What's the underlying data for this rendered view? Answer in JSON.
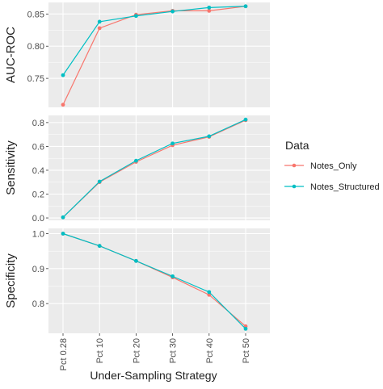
{
  "chart_data": {
    "type": "line",
    "xlabel": "Under-Sampling Strategy",
    "categories": [
      "Pct 0.28",
      "Pct 10",
      "Pct 20",
      "Pct 30",
      "Pct 40",
      "Pct 50"
    ],
    "legend": {
      "title": "Data",
      "position": "right",
      "entries": [
        {
          "name": "Notes_Only",
          "color": "#F8766D"
        },
        {
          "name": "Notes_Structured",
          "color": "#00BFC4"
        }
      ]
    },
    "panels": [
      {
        "ylabel": "AUC-ROC",
        "ylim": [
          0.705,
          0.868
        ],
        "yticks": [
          0.75,
          0.8,
          0.85
        ],
        "ytick_labels": [
          "0.75",
          "0.80",
          "0.85"
        ],
        "series": [
          {
            "name": "Notes_Only",
            "values": [
              0.709,
              0.828,
              0.849,
              0.855,
              0.855,
              0.862
            ]
          },
          {
            "name": "Notes_Structured",
            "values": [
              0.755,
              0.838,
              0.847,
              0.854,
              0.86,
              0.862
            ]
          }
        ]
      },
      {
        "ylabel": "Sensitivity",
        "ylim": [
          -0.02,
          0.86
        ],
        "yticks": [
          0.0,
          0.2,
          0.4,
          0.6,
          0.8
        ],
        "ytick_labels": [
          "0.0",
          "0.2",
          "0.4",
          "0.6",
          "0.8"
        ],
        "series": [
          {
            "name": "Notes_Only",
            "values": [
              0.005,
              0.3,
              0.47,
              0.61,
              0.68,
              0.82
            ]
          },
          {
            "name": "Notes_Structured",
            "values": [
              0.005,
              0.305,
              0.48,
              0.625,
              0.685,
              0.825
            ]
          }
        ]
      },
      {
        "ylabel": "Specificity",
        "ylim": [
          0.715,
          1.015
        ],
        "yticks": [
          0.8,
          0.9,
          1.0
        ],
        "ytick_labels": [
          "0.8",
          "0.9",
          "1.0"
        ],
        "series": [
          {
            "name": "Notes_Only",
            "values": [
              1.0,
              0.965,
              0.922,
              0.875,
              0.825,
              0.735
            ]
          },
          {
            "name": "Notes_Structured",
            "values": [
              1.0,
              0.965,
              0.922,
              0.878,
              0.833,
              0.728
            ]
          }
        ]
      }
    ],
    "grid": true
  }
}
